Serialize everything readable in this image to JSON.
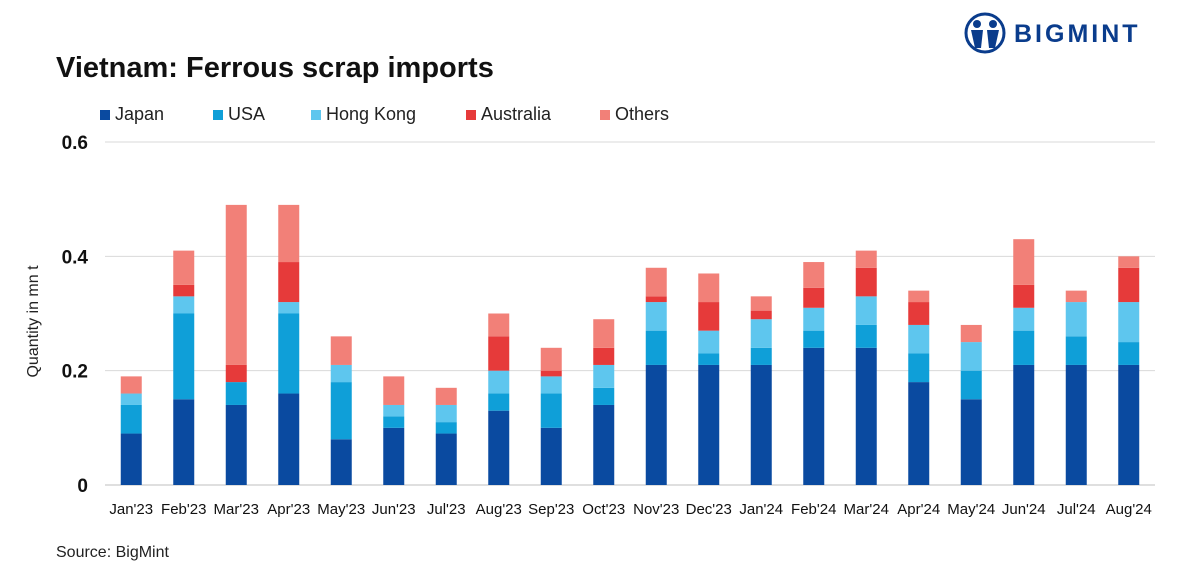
{
  "header": {
    "title": "Vietnam: Ferrous scrap imports",
    "brand": "BIGMINT"
  },
  "footer": {
    "source": "Source: BigMint"
  },
  "colors": {
    "japan": "#0a4aa0",
    "usa": "#0f9fd8",
    "hong_kong": "#5ec6ee",
    "australia": "#e63a3a",
    "others": "#f28078",
    "grid": "#d9d9d9",
    "brand": "#0a3c8c"
  },
  "chart_data": {
    "type": "bar",
    "stacked": true,
    "title": "Vietnam: Ferrous scrap imports",
    "xlabel": "",
    "ylabel": "Quantity in mn t",
    "ylim": [
      0,
      0.6
    ],
    "yticks": [
      "0",
      "0.2",
      "0.4",
      "0.6"
    ],
    "grid": true,
    "legend_position": "top-left",
    "categories": [
      "Jan'23",
      "Feb'23",
      "Mar'23",
      "Apr'23",
      "May'23",
      "Jun'23",
      "Jul'23",
      "Aug'23",
      "Sep'23",
      "Oct'23",
      "Nov'23",
      "Dec'23",
      "Jan'24",
      "Feb'24",
      "Mar'24",
      "Apr'24",
      "May'24",
      "Jun'24",
      "Jul'24",
      "Aug'24"
    ],
    "series": [
      {
        "name": "Japan",
        "color": "#0a4aa0",
        "values": [
          0.09,
          0.15,
          0.14,
          0.16,
          0.08,
          0.1,
          0.09,
          0.13,
          0.1,
          0.14,
          0.21,
          0.21,
          0.21,
          0.24,
          0.24,
          0.18,
          0.15,
          0.21,
          0.21,
          0.21
        ]
      },
      {
        "name": "USA",
        "color": "#0f9fd8",
        "values": [
          0.05,
          0.15,
          0.04,
          0.14,
          0.1,
          0.02,
          0.02,
          0.03,
          0.06,
          0.03,
          0.06,
          0.02,
          0.03,
          0.03,
          0.04,
          0.05,
          0.05,
          0.06,
          0.05,
          0.04
        ]
      },
      {
        "name": "Hong Kong",
        "color": "#5ec6ee",
        "values": [
          0.02,
          0.03,
          0.0,
          0.02,
          0.03,
          0.02,
          0.03,
          0.04,
          0.03,
          0.04,
          0.05,
          0.04,
          0.05,
          0.04,
          0.05,
          0.05,
          0.05,
          0.04,
          0.06,
          0.07
        ]
      },
      {
        "name": "Australia",
        "color": "#e63a3a",
        "values": [
          0.0,
          0.02,
          0.03,
          0.07,
          0.0,
          0.0,
          0.0,
          0.06,
          0.01,
          0.03,
          0.01,
          0.05,
          0.015,
          0.035,
          0.05,
          0.04,
          0.0,
          0.04,
          0.0,
          0.06
        ]
      },
      {
        "name": "Others",
        "color": "#f28078",
        "values": [
          0.03,
          0.06,
          0.28,
          0.1,
          0.05,
          0.05,
          0.03,
          0.04,
          0.04,
          0.05,
          0.05,
          0.05,
          0.025,
          0.045,
          0.03,
          0.02,
          0.03,
          0.08,
          0.02,
          0.02
        ]
      }
    ]
  }
}
